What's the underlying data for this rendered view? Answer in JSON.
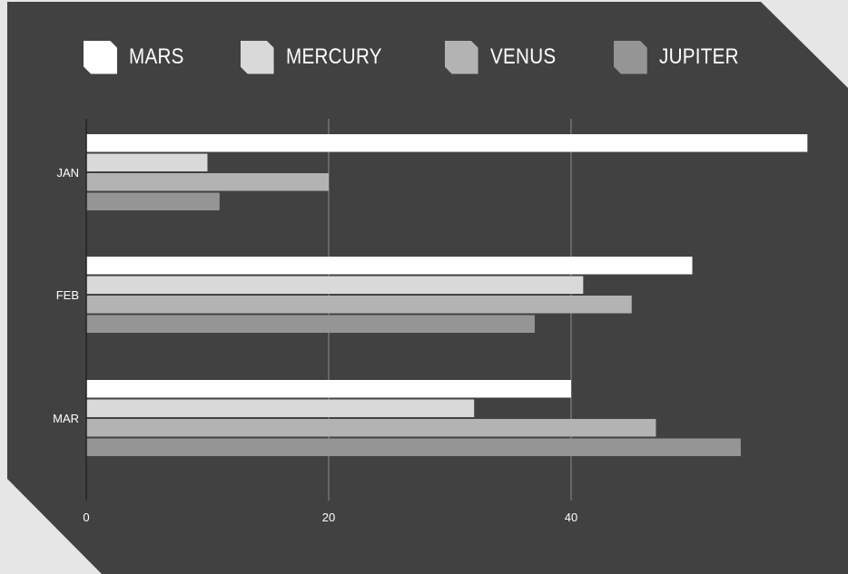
{
  "colors": {
    "page_background": "#e6e6e6",
    "panel_background": "#414141",
    "gridline": "#8c8c8c",
    "axis_line": "#222222"
  },
  "legend": {
    "items": [
      {
        "label": "MARS",
        "color": "#ffffff"
      },
      {
        "label": "MERCURY",
        "color": "#d9d9d9"
      },
      {
        "label": "VENUS",
        "color": "#b3b3b3"
      },
      {
        "label": "JUPITER",
        "color": "#959595"
      }
    ]
  },
  "chart_data": {
    "type": "bar",
    "orientation": "horizontal",
    "title": "",
    "xlabel": "",
    "ylabel": "",
    "categories": [
      "JAN",
      "FEB",
      "MAR"
    ],
    "series": [
      {
        "name": "MARS",
        "color": "#ffffff",
        "values": [
          59.5,
          50,
          40
        ]
      },
      {
        "name": "MERCURY",
        "color": "#d9d9d9",
        "values": [
          10,
          41,
          32
        ]
      },
      {
        "name": "VENUS",
        "color": "#b3b3b3",
        "values": [
          20,
          45,
          47
        ]
      },
      {
        "name": "JUPITER",
        "color": "#959595",
        "values": [
          11,
          37,
          54
        ]
      }
    ],
    "x_ticks": [
      0,
      20,
      40
    ],
    "xlim": [
      0,
      60
    ],
    "grid": "vertical",
    "legend_position": "top"
  }
}
